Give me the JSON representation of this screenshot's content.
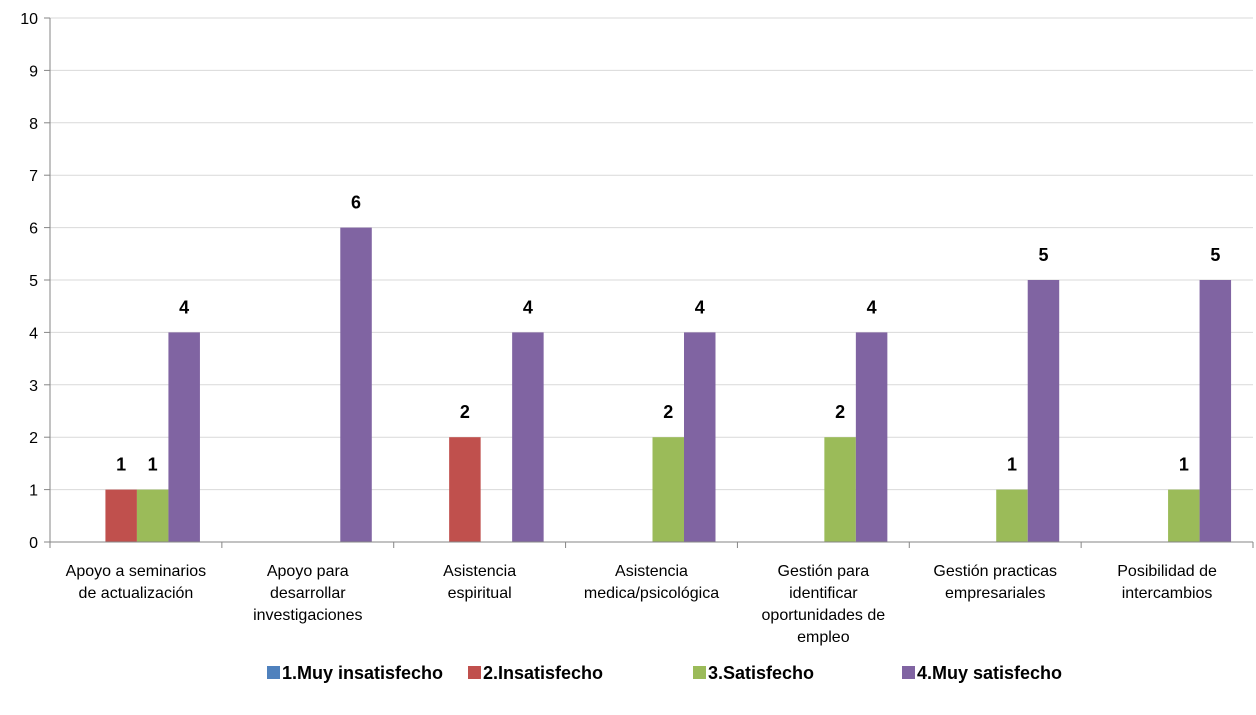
{
  "chart_data": {
    "type": "bar",
    "title": "",
    "xlabel": "",
    "ylabel": "",
    "ylim": [
      0,
      10
    ],
    "yticks": [
      0,
      1,
      2,
      3,
      4,
      5,
      6,
      7,
      8,
      9,
      10
    ],
    "grid": true,
    "legend_position": "bottom",
    "categories": [
      [
        "Apoyo a seminarios",
        "de actualización"
      ],
      [
        "Apoyo para",
        "desarrollar",
        "investigaciones"
      ],
      [
        "Asistencia",
        "espiritual"
      ],
      [
        "Asistencia",
        "medica/psicológica"
      ],
      [
        "Gestión para",
        "identificar",
        "oportunidades de",
        "empleo"
      ],
      [
        "Gestión practicas",
        "empresariales"
      ],
      [
        "Posibilidad de",
        "intercambios"
      ]
    ],
    "series": [
      {
        "name": "1.Muy insatisfecho",
        "color": "#4F81BD",
        "values": [
          0,
          0,
          0,
          0,
          0,
          0,
          0
        ]
      },
      {
        "name": "2.Insatisfecho",
        "color": "#C0504D",
        "values": [
          1,
          0,
          2,
          0,
          0,
          0,
          0
        ]
      },
      {
        "name": "3.Satisfecho",
        "color": "#9BBB59",
        "values": [
          1,
          0,
          0,
          2,
          2,
          1,
          1
        ]
      },
      {
        "name": "4.Muy satisfecho",
        "color": "#8064A2",
        "values": [
          4,
          6,
          4,
          4,
          4,
          5,
          5
        ]
      }
    ]
  }
}
